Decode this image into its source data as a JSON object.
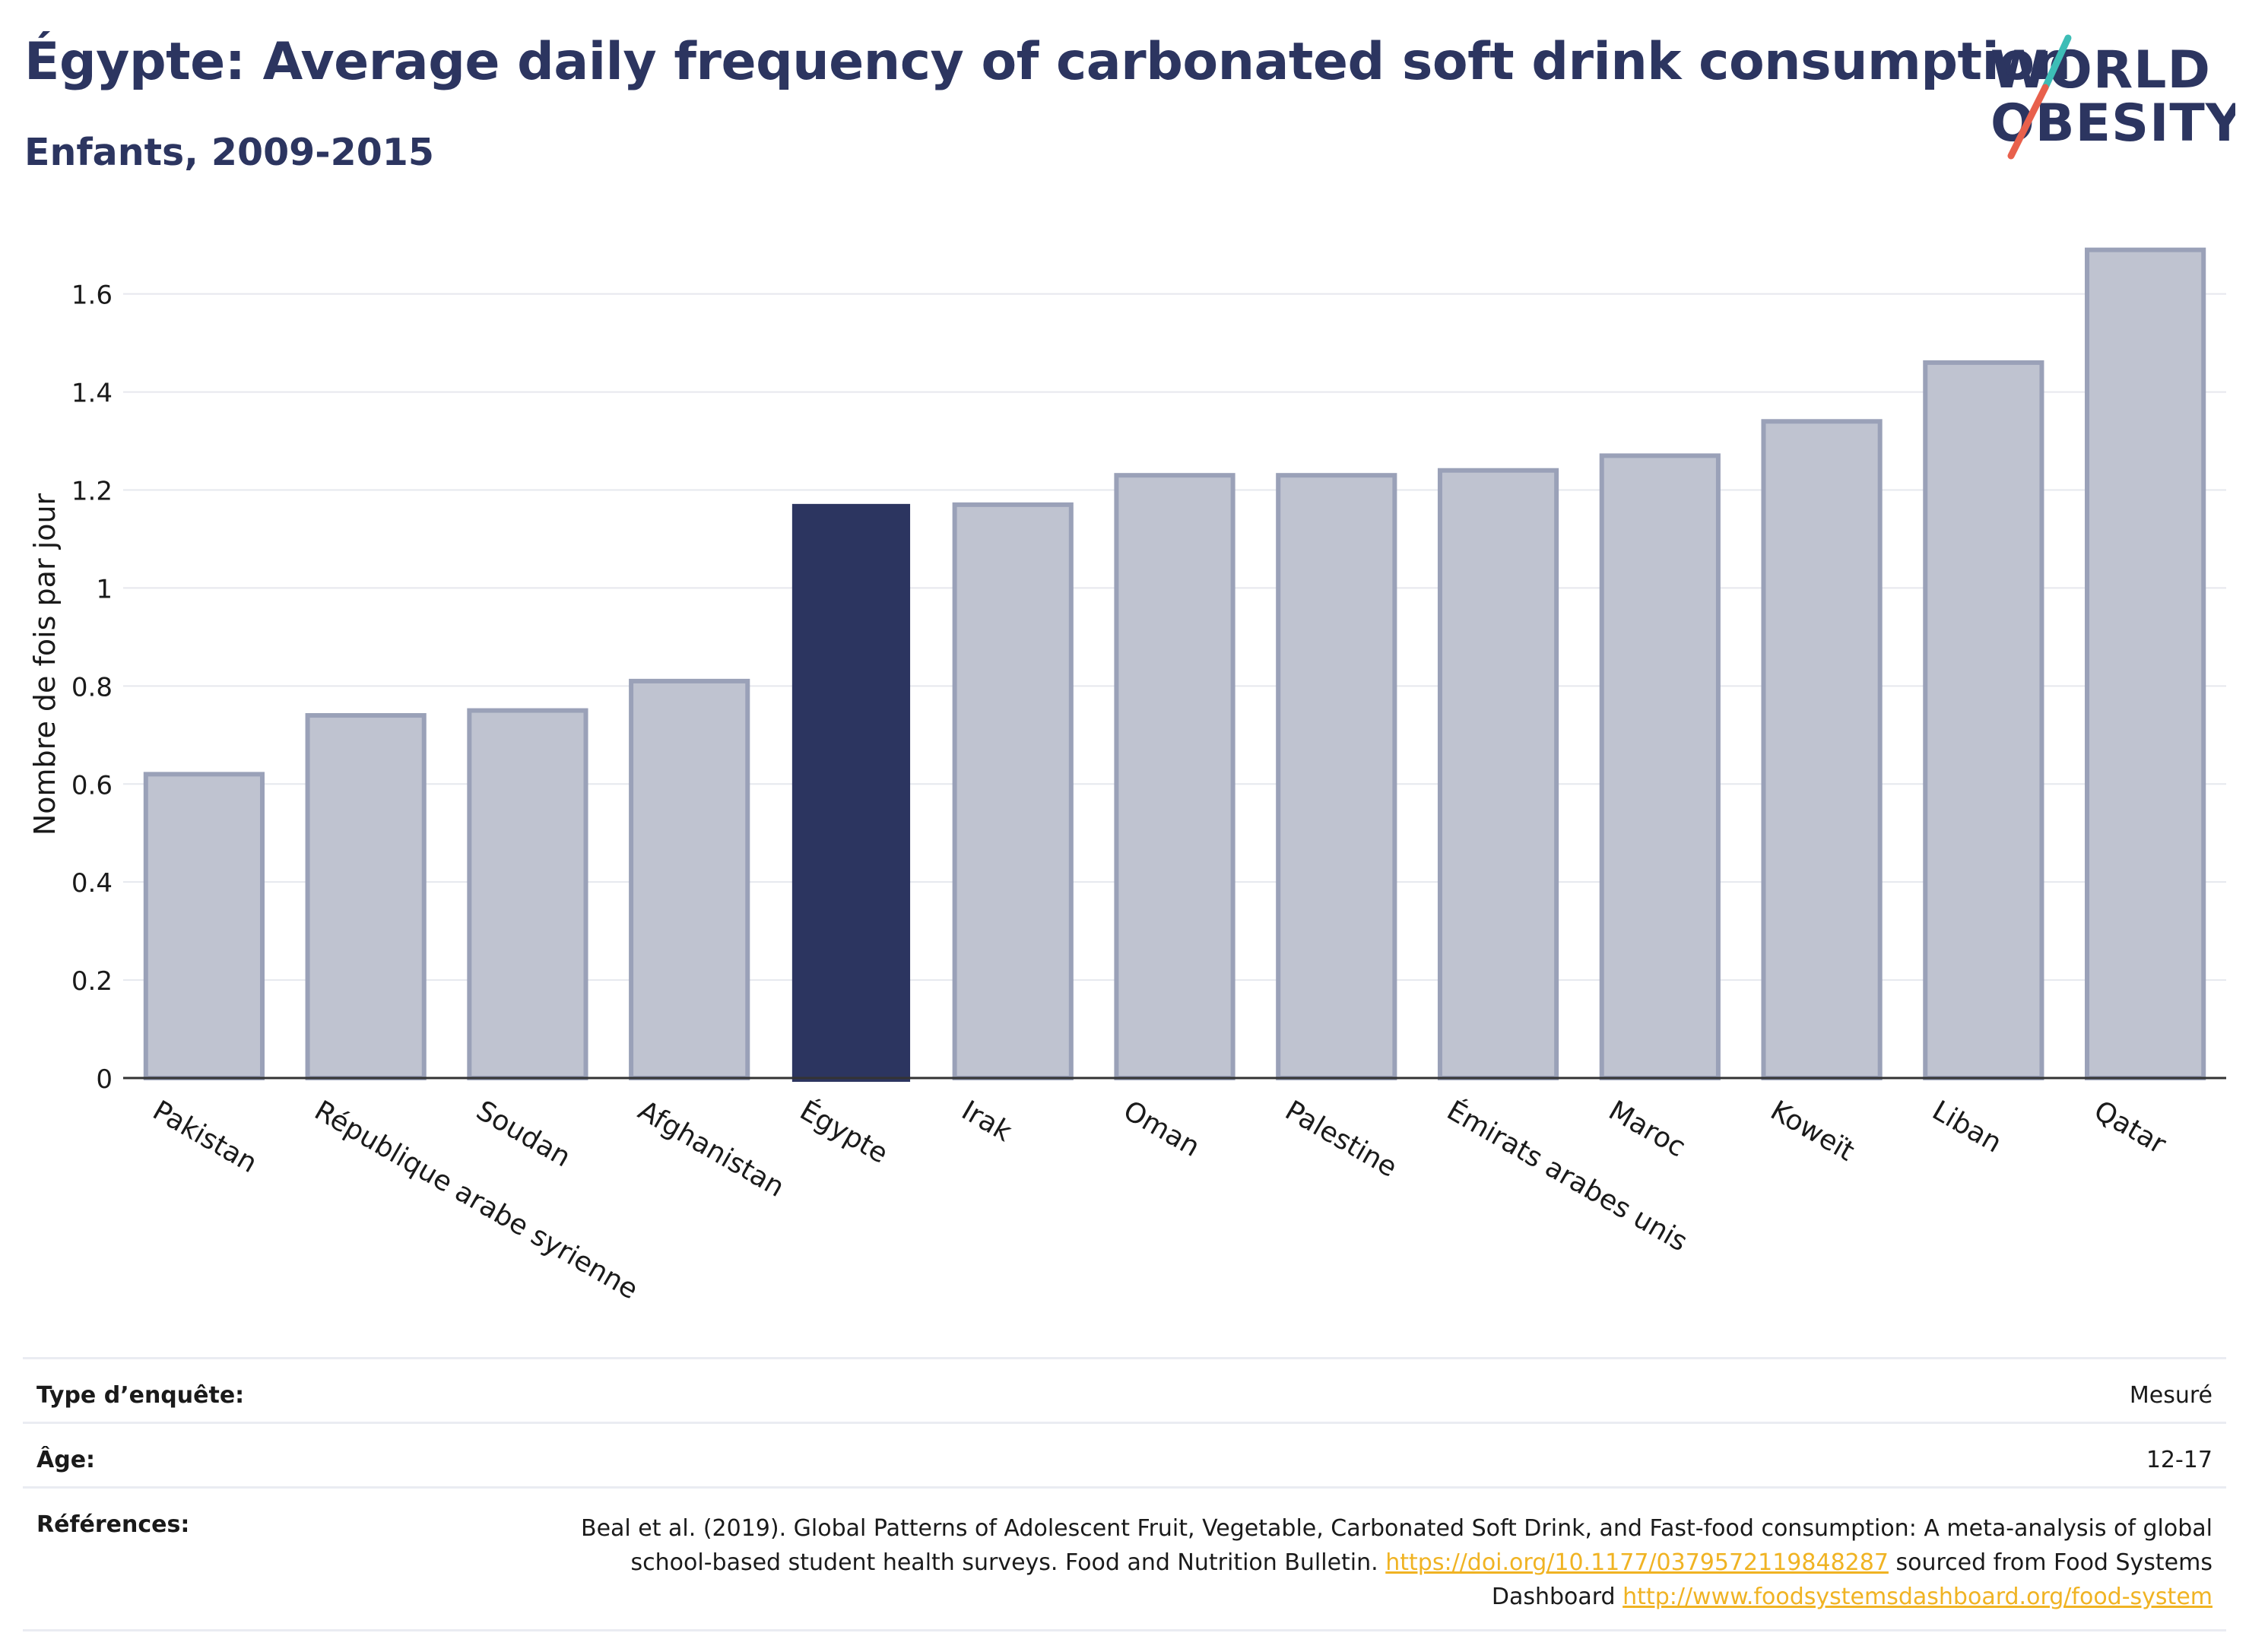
{
  "header": {
    "title": "Égypte: Average daily frequency of carbonated soft drink consumption",
    "subtitle": "Enfants, 2009-2015"
  },
  "logo": {
    "line1": "WORLD",
    "line2": "OBESITY",
    "accent_teal": "#3dbdb6",
    "accent_coral": "#e8604c"
  },
  "colors": {
    "highlight": "#2c3560",
    "bar_fill": "#bfc3d0",
    "bar_stroke": "#9aa1b8",
    "axis": "#333333",
    "grid": "#e6e8ee"
  },
  "chart_data": {
    "type": "bar",
    "ylabel": "Nombre de fois par jour",
    "categories": [
      "Pakistan",
      "République arabe syrienne",
      "Soudan",
      "Afghanistan",
      "Égypte",
      "Irak",
      "Oman",
      "Palestine",
      "Émirats arabes unis",
      "Maroc",
      "Koweït",
      "Liban",
      "Qatar"
    ],
    "values": [
      0.62,
      0.74,
      0.75,
      0.81,
      1.17,
      1.17,
      1.23,
      1.23,
      1.24,
      1.27,
      1.34,
      1.46,
      1.69
    ],
    "highlight": "Égypte",
    "ylim": [
      0,
      1.75
    ],
    "yticks": [
      0,
      0.2,
      0.4,
      0.6,
      0.8,
      1,
      1.2,
      1.4,
      1.6
    ],
    "ytick_labels": [
      "0",
      "0.2",
      "0.4",
      "0.6",
      "0.8",
      "1",
      "1.2",
      "1.4",
      "1.6"
    ],
    "grid": true
  },
  "meta": {
    "survey_label": "Type d’enquête:",
    "survey_value": "Mesuré",
    "age_label": "Âge:",
    "age_value": "12-17",
    "ref_label": "Références:",
    "ref_text_1": "Beal et al. (2019). Global Patterns of Adolescent Fruit, Vegetable, Carbonated Soft Drink, and Fast-food consumption: A meta-analysis of global school-based student health surveys. Food and Nutrition Bulletin.",
    "ref_link_1": "https://doi.org/10.1177/0379572119848287",
    "ref_text_2": "sourced from Food Systems Dashboard",
    "ref_link_2": "http://www.foodsystemsdashboard.org/food-system"
  }
}
